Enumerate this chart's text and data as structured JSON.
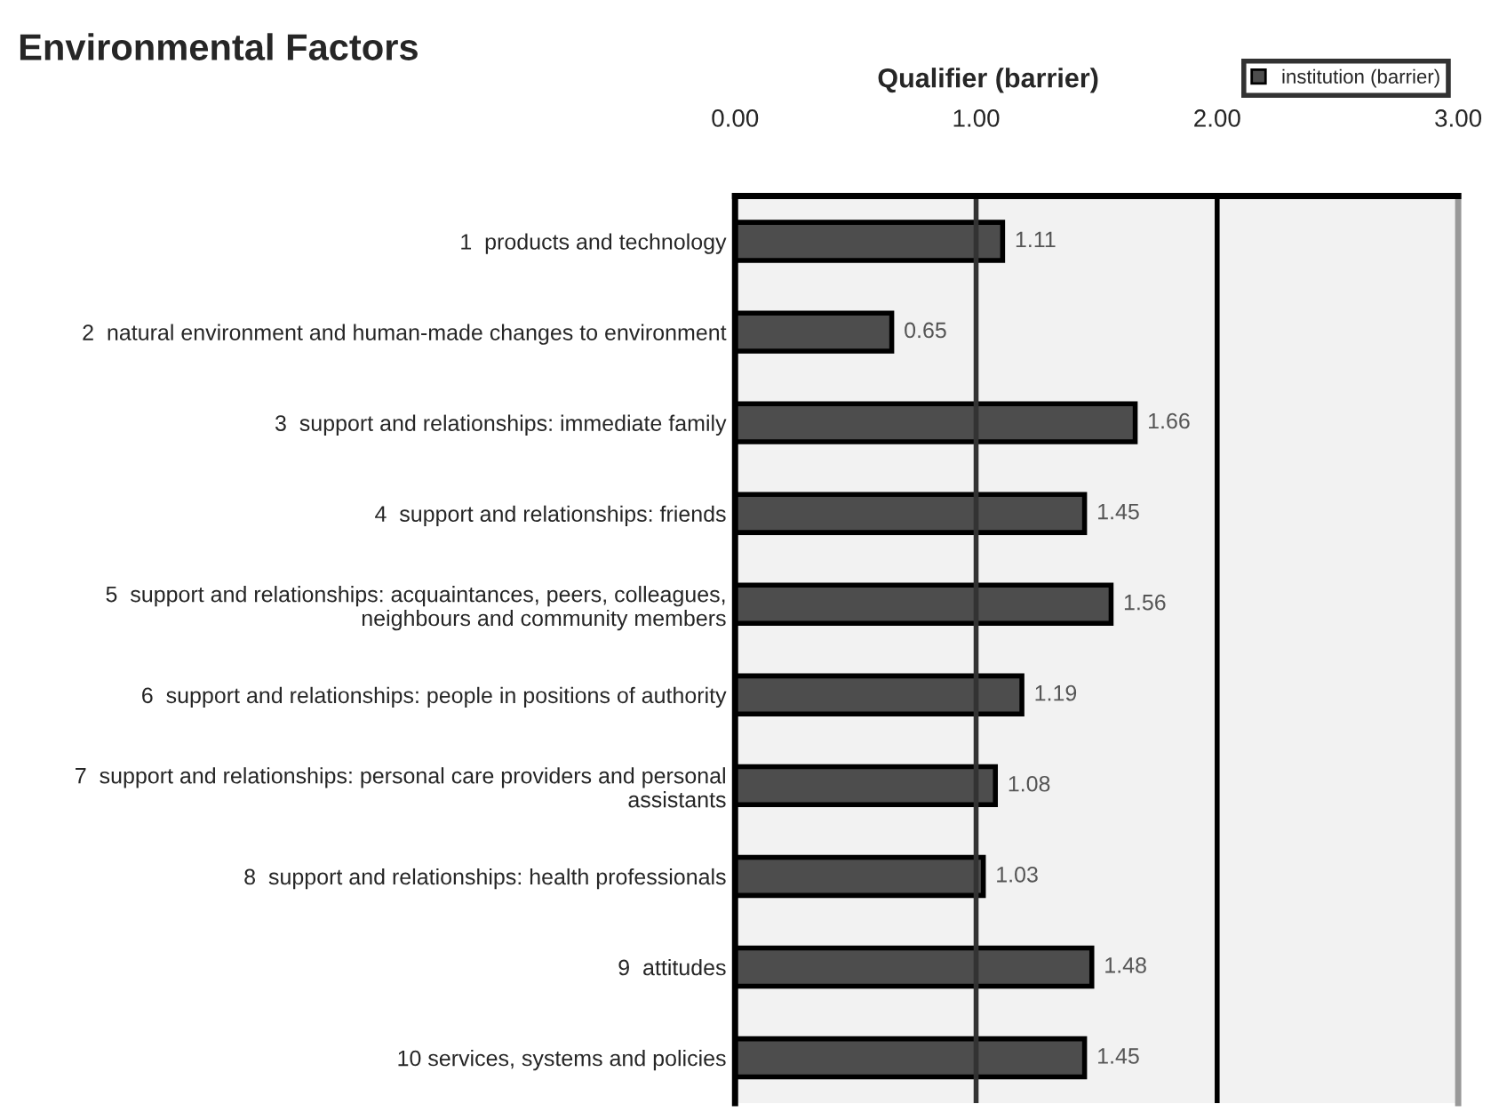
{
  "chart_data": {
    "type": "bar",
    "orientation": "horizontal",
    "title": "Environmental Factors",
    "xlabel": "Qualifier (barrier)",
    "categories": [
      "1  products and technology",
      "2  natural environment and human-made changes to environment",
      "3  support and relationships: immediate family",
      "4  support and relationships: friends",
      "5  support and relationships: acquaintances, peers, colleagues,\nneighbours and community members",
      "6  support and relationships: people in positions of authority",
      "7  support and relationships: personal care providers and personal\nassistants",
      "8  support and relationships: health professionals",
      "9  attitudes",
      "10 services, systems and policies"
    ],
    "series": [
      {
        "name": "institution (barrier)",
        "color": "#4d4d4d",
        "values": [
          1.11,
          0.65,
          1.66,
          1.45,
          1.56,
          1.19,
          1.08,
          1.03,
          1.48,
          1.45
        ]
      }
    ],
    "xlim": [
      0,
      3
    ],
    "xticks": [
      {
        "value": 0,
        "label": "0.00"
      },
      {
        "value": 1,
        "label": "1.00"
      },
      {
        "value": 2,
        "label": "2.00"
      },
      {
        "value": 3,
        "label": "3.00"
      }
    ],
    "ref_lines": [
      {
        "axis": "x",
        "value": 1,
        "color": "#333333"
      },
      {
        "axis": "x",
        "value": 2,
        "color": "#000000"
      }
    ],
    "legend": "top right",
    "data_labels": true
  }
}
